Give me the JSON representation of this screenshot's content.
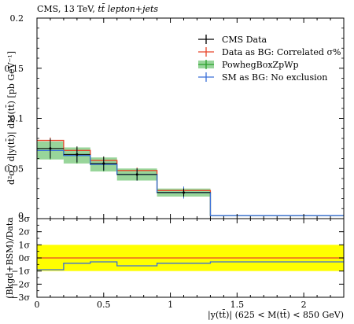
{
  "header": {
    "experiment": "CMS, 13 TeV, ",
    "process": "tt̄ lepton+jets"
  },
  "main_panel": {
    "ylabel": "d²σ / d|y(tt̄)| dM(tt̄)  [pb GeV⁻¹]",
    "yticks": [
      "0.05",
      "0.1",
      "0.15",
      "0.2"
    ],
    "ylim": [
      0.0,
      0.2
    ],
    "ylim_labels": {
      "bottom": "0"
    }
  },
  "ratio_panel": {
    "ylabel": "(Bkgd+BSM)/Data",
    "yticks": [
      "3σ",
      "2σ",
      "1σ",
      "0σ",
      "−1σ",
      "−2σ",
      "−3σ"
    ],
    "ylim": [
      -3,
      3
    ]
  },
  "xaxis": {
    "label": "|y(tt̄)|  (625 < M(tt̄) < 850 GeV)",
    "ticks": [
      "0",
      "0.5",
      "1",
      "1.5",
      "2"
    ],
    "xlim": [
      0.0,
      2.3
    ]
  },
  "legend": [
    {
      "label": "CMS Data",
      "color": "#000000"
    },
    {
      "label": "Data as BG: Correlated σ%",
      "color": "#e8462b"
    },
    {
      "label": "PowhegBoxZpWp",
      "color": "#2ca02c",
      "band": "#98d59a"
    },
    {
      "label": "SM as BG: No exclusion",
      "color": "#3a6fd8"
    }
  ],
  "colors": {
    "data": "#000000",
    "red": "#e8462b",
    "green": "#2ca02c",
    "green_band": "#98d59a",
    "blue": "#3a6fd8",
    "yellow_band": "#ffff00"
  },
  "chart_data": {
    "type": "line",
    "bins": [
      [
        0.0,
        0.2
      ],
      [
        0.2,
        0.4
      ],
      [
        0.4,
        0.6
      ],
      [
        0.6,
        0.9
      ],
      [
        0.9,
        1.3
      ],
      [
        1.3,
        2.3
      ]
    ],
    "series": [
      {
        "name": "CMS Data",
        "values": [
          0.07,
          0.064,
          0.055,
          0.044,
          0.026,
          0.0
        ],
        "errors": [
          0.01,
          0.008,
          0.007,
          0.006,
          0.004,
          0.0
        ]
      },
      {
        "name": "Data as BG: Correlated σ%",
        "values": [
          0.078,
          0.068,
          0.058,
          0.048,
          0.028,
          0.003
        ]
      },
      {
        "name": "PowhegBoxZpWp",
        "values": [
          0.068,
          0.063,
          0.054,
          0.044,
          0.026,
          0.003
        ],
        "band": [
          0.009,
          0.008,
          0.007,
          0.006,
          0.004,
          0.0
        ]
      },
      {
        "name": "SM as BG: No exclusion",
        "values": [
          0.068,
          0.063,
          0.054,
          0.044,
          0.026,
          0.003
        ]
      }
    ],
    "ratio": {
      "yellow_band": [
        -1,
        1
      ],
      "series": [
        {
          "name": "Data as BG: Correlated σ%",
          "values": [
            0.0,
            0.0,
            0.0,
            0.0,
            0.0,
            0.0
          ]
        },
        {
          "name": "SM as BG: No exclusion",
          "values": [
            -0.9,
            -0.4,
            -0.3,
            -0.6,
            -0.4,
            -0.3
          ]
        }
      ]
    }
  }
}
